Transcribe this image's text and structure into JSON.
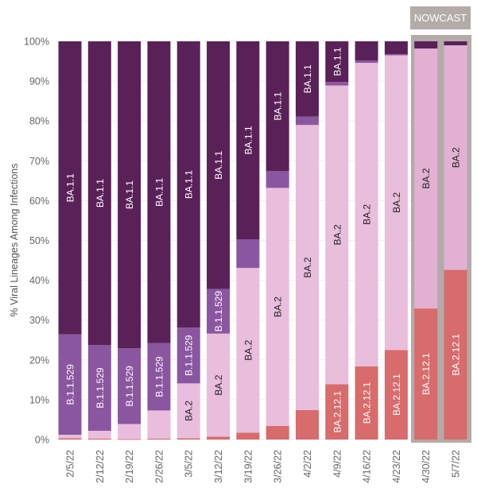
{
  "nowcast_label": "NOWCAST",
  "chart_data": {
    "type": "bar",
    "stacked": true,
    "title": "",
    "xlabel": "",
    "ylabel": "% Viral Lineages Among Infections",
    "ylim": [
      0,
      100
    ],
    "yticks": [
      "0%",
      "10%",
      "20%",
      "30%",
      "40%",
      "50%",
      "60%",
      "70%",
      "80%",
      "90%",
      "100%"
    ],
    "grid": true,
    "categories": [
      "2/5/22",
      "2/12/22",
      "2/19/22",
      "2/26/22",
      "3/5/22",
      "3/12/22",
      "3/19/22",
      "3/26/22",
      "4/2/22",
      "4/9/22",
      "4/16/22",
      "4/23/22",
      "4/30/22",
      "5/7/22"
    ],
    "nowcast_categories": [
      "4/30/22",
      "5/7/22"
    ],
    "series": [
      {
        "name": "BA.2.12.1",
        "color": "#d86b6b",
        "text_color": "#ffffff",
        "values": [
          0.3,
          0.2,
          0.1,
          0.2,
          0.3,
          0.7,
          1.7,
          3.4,
          7.4,
          13.9,
          18.4,
          22.5,
          32.9,
          42.6
        ]
      },
      {
        "name": "BA.2",
        "color": "#e9bddc",
        "nowcast_color": "#e2b0d3",
        "text_color": "#222222",
        "values": [
          0.9,
          2.0,
          3.8,
          7.1,
          13.8,
          25.9,
          41.4,
          59.8,
          71.6,
          75.0,
          76.2,
          74.0,
          65.3,
          56.4
        ]
      },
      {
        "name": "B.1.1.529",
        "color": "#8b56a0",
        "text_color": "#ffffff",
        "values": [
          25.2,
          21.5,
          19.0,
          16.9,
          14.0,
          11.2,
          7.2,
          4.2,
          2.1,
          0.9,
          0.6,
          0.3,
          0.0,
          0.0
        ]
      },
      {
        "name": "BA.1.1",
        "color": "#5a2159",
        "text_color": "#ffffff",
        "values": [
          73.6,
          76.3,
          77.1,
          75.8,
          71.9,
          62.2,
          49.7,
          32.6,
          18.9,
          10.2,
          4.8,
          3.2,
          1.8,
          1.0
        ]
      }
    ]
  }
}
